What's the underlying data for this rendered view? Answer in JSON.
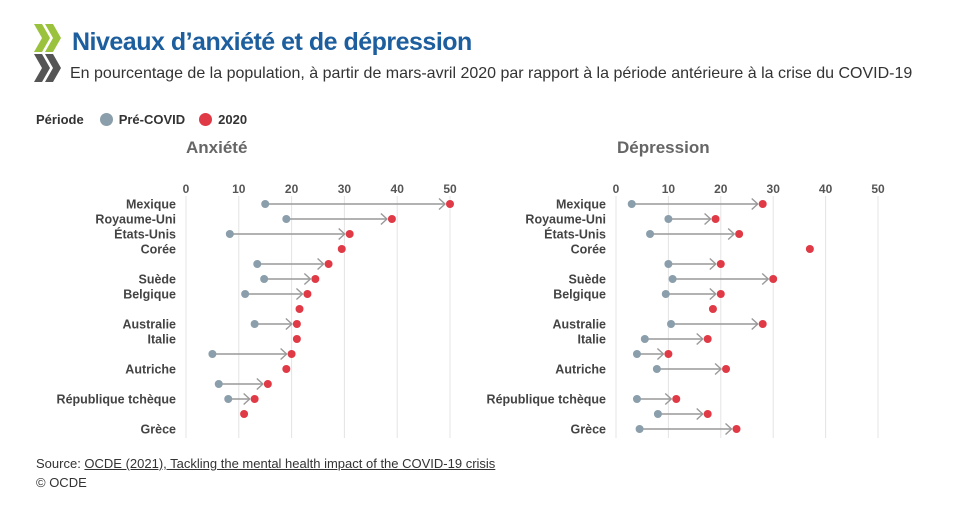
{
  "header": {
    "title": "Niveaux d’anxiété et de dépression",
    "subtitle": "En pourcentage de la population, à partir de mars-avril 2020 par rapport à la période antérieure à la crise du COVID-19"
  },
  "legend": {
    "title": "Période",
    "items": [
      {
        "label": "Pré-COVID",
        "color": "#8a9eab"
      },
      {
        "label": "2020",
        "color": "#e03a46"
      }
    ]
  },
  "footer": {
    "source_prefix": "Source: ",
    "source_link": "OCDE (2021), Tackling the mental health impact of the COVID-19 crisis",
    "copyright": "© OCDE"
  },
  "chart_data": [
    {
      "type": "dumbbell",
      "title": "Anxiété",
      "xlim": [
        0,
        50
      ],
      "xticks": [
        0,
        10,
        20,
        30,
        40,
        50
      ],
      "categories": [
        "Mexique",
        "Royaume-Uni",
        "États-Unis",
        "Corée",
        "",
        "Suède",
        "Belgique",
        "",
        "Australie",
        "Italie",
        "",
        "Autriche",
        "",
        "République tchèque",
        "",
        "Grèce"
      ],
      "series": [
        {
          "name": "Pré-COVID",
          "values": [
            15,
            19,
            8.3,
            null,
            13.5,
            14.8,
            11.2,
            null,
            13,
            null,
            5,
            null,
            6.2,
            8,
            null,
            null
          ]
        },
        {
          "name": "2020",
          "values": [
            50,
            39,
            31,
            29.5,
            27,
            24.5,
            23,
            21.5,
            21,
            21,
            20,
            19,
            15.5,
            13,
            11,
            null
          ]
        }
      ]
    },
    {
      "type": "dumbbell",
      "title": "Dépression",
      "xlim": [
        0,
        50
      ],
      "xticks": [
        0,
        10,
        20,
        30,
        40,
        50
      ],
      "categories": [
        "Mexique",
        "Royaume-Uni",
        "États-Unis",
        "Corée",
        "",
        "Suède",
        "Belgique",
        "",
        "Australie",
        "Italie",
        "",
        "Autriche",
        "",
        "République tchèque",
        "",
        "Grèce"
      ],
      "series": [
        {
          "name": "Pré-COVID",
          "values": [
            3,
            10,
            6.5,
            null,
            10,
            10.8,
            9.5,
            null,
            10.5,
            5.5,
            4,
            7.8,
            null,
            4,
            8,
            4.5
          ]
        },
        {
          "name": "2020",
          "values": [
            28,
            19,
            23.5,
            37,
            20,
            30,
            20,
            18.5,
            28,
            17.5,
            10,
            21,
            null,
            11.5,
            17.5,
            23
          ]
        }
      ]
    }
  ]
}
